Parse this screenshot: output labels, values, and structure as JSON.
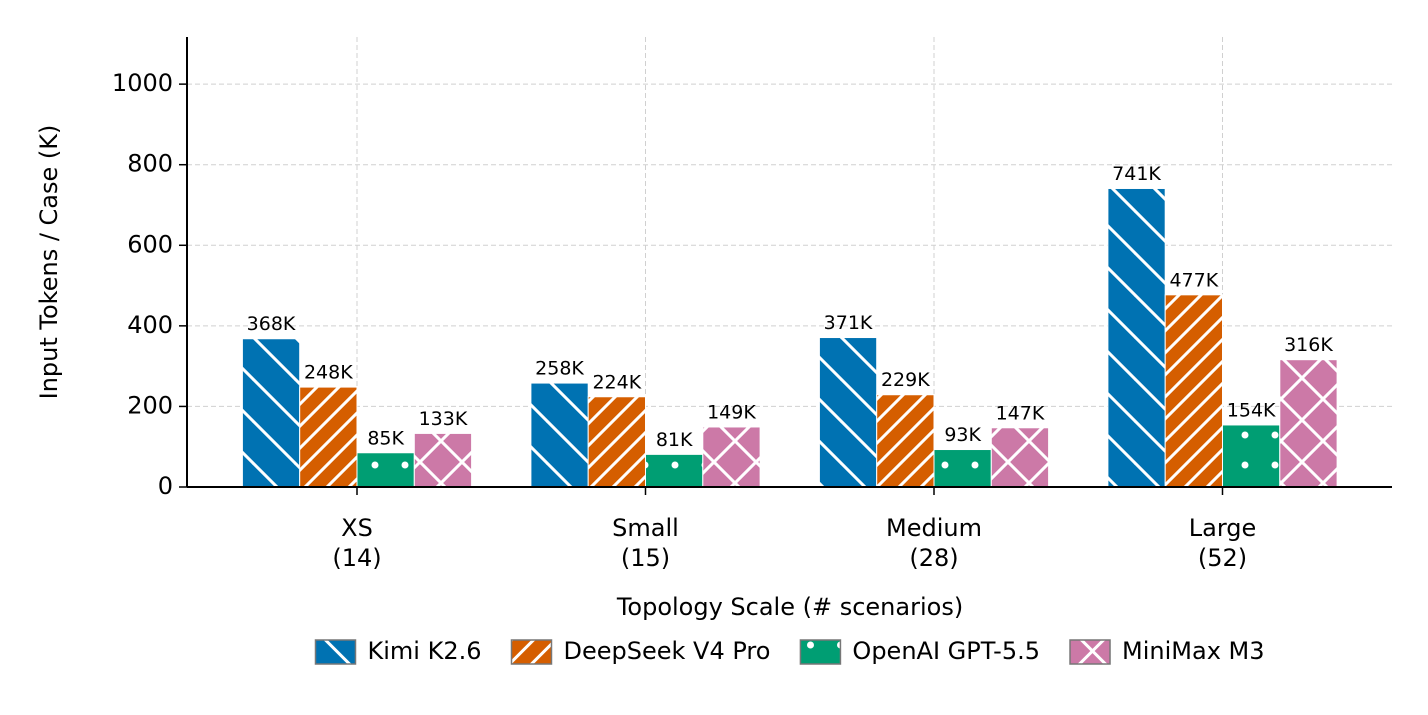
{
  "chart_data": {
    "type": "bar",
    "x_label": "Topology Scale (# scenarios)",
    "y_label": "Input Tokens / Case (K)",
    "categories": [
      "XS\n(14)",
      "Small\n(15)",
      "Medium\n(28)",
      "Large\n(52)"
    ],
    "series": [
      {
        "name": "Kimi K2.6",
        "color": "#0072b2",
        "hatch": "\\\\",
        "values": [
          368,
          258,
          371,
          741
        ],
        "value_labels": [
          "368K",
          "258K",
          "371K",
          "741K"
        ]
      },
      {
        "name": "DeepSeek V4 Pro",
        "color": "#d55e00",
        "hatch": "//",
        "values": [
          248,
          224,
          229,
          477
        ],
        "value_labels": [
          "248K",
          "224K",
          "229K",
          "477K"
        ]
      },
      {
        "name": "OpenAI GPT-5.5",
        "color": "#009e73",
        "hatch": ".",
        "values": [
          85,
          81,
          93,
          154
        ],
        "value_labels": [
          "85K",
          "81K",
          "93K",
          "154K"
        ]
      },
      {
        "name": "MiniMax M3",
        "color": "#cc79a7",
        "hatch": "x",
        "values": [
          133,
          149,
          147,
          316
        ],
        "value_labels": [
          "133K",
          "149K",
          "147K",
          "316K"
        ]
      }
    ],
    "ylim": [
      0,
      1117
    ],
    "yticks": [
      0,
      200,
      400,
      600,
      800,
      1000
    ],
    "grid": true,
    "legend": "lower center"
  }
}
